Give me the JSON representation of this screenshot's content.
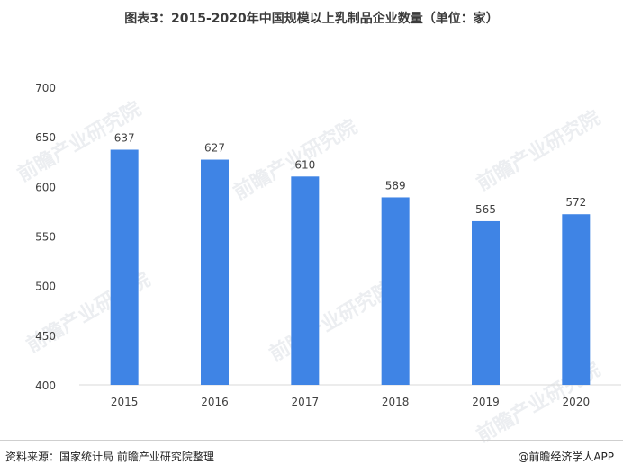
{
  "title": "图表3：2015-2020年中国规模以上乳制品企业数量（单位：家）",
  "footer": {
    "source": "资料来源：国家统计局 前瞻产业研究院整理",
    "credit": "@前瞻经济学人APP"
  },
  "watermark": "前瞻产业研究院",
  "colors": {
    "bar": "#3f84e5",
    "axis": "#d9d9d9",
    "text": "#404040"
  },
  "chart_data": {
    "type": "bar",
    "categories": [
      "2015",
      "2016",
      "2017",
      "2018",
      "2019",
      "2020"
    ],
    "values": [
      637,
      627,
      610,
      589,
      565,
      572
    ],
    "ylim": [
      400,
      700
    ],
    "yticks": [
      400,
      450,
      500,
      550,
      600,
      650,
      700
    ],
    "grid": false,
    "data_labels": true
  }
}
